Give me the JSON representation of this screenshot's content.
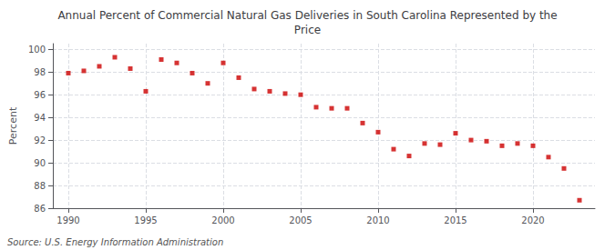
{
  "chart_data": {
    "type": "scatter",
    "title": "Annual Percent of Commercial Natural Gas Deliveries in South Carolina Represented by the\nPrice",
    "ylabel": "Percent",
    "source": "Source: U.S. Energy Information Administration",
    "x": [
      1990,
      1991,
      1992,
      1993,
      1994,
      1995,
      1996,
      1997,
      1998,
      1999,
      2000,
      2001,
      2002,
      2003,
      2004,
      2005,
      2006,
      2007,
      2008,
      2009,
      2010,
      2011,
      2012,
      2013,
      2014,
      2015,
      2016,
      2017,
      2018,
      2019,
      2020,
      2021,
      2022,
      2023
    ],
    "values": [
      97.9,
      98.1,
      98.5,
      99.3,
      98.3,
      96.3,
      99.1,
      98.8,
      97.9,
      97.0,
      98.8,
      97.5,
      96.5,
      96.3,
      96.1,
      96.0,
      94.9,
      94.8,
      94.8,
      93.5,
      92.7,
      91.2,
      90.6,
      91.7,
      91.6,
      92.6,
      92.0,
      91.9,
      91.5,
      91.7,
      91.5,
      90.5,
      89.5,
      86.7
    ],
    "color": "#cc0000",
    "marker": "square",
    "xlim": [
      1989,
      2024
    ],
    "xticks": [
      1990,
      1995,
      2000,
      2005,
      2010,
      2015,
      2020
    ],
    "ylim": [
      86,
      100.5
    ],
    "yticks": [
      86,
      88,
      90,
      92,
      94,
      96,
      98,
      100
    ],
    "grid": true
  }
}
